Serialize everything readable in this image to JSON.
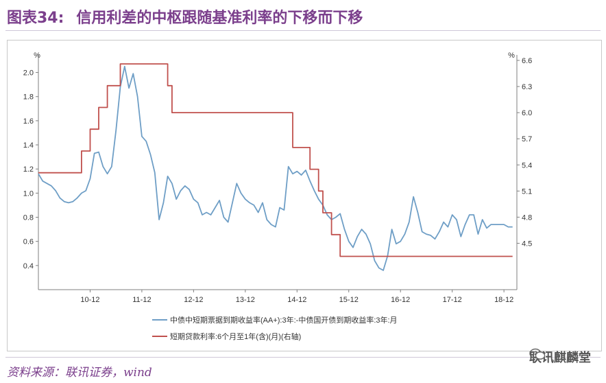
{
  "header": {
    "figure_label": "图表34:",
    "title": "信用利差的中枢跟随基准利率的下移而下移"
  },
  "footer": {
    "source": "资料来源：联讯证券，wind",
    "watermark": "联讯麒麟堂"
  },
  "colors": {
    "accent": "#7b3f8c",
    "series_spread": "#6e9ec6",
    "series_rate": "#c0504d"
  },
  "chart_data": {
    "type": "line",
    "left_axis": {
      "unit": "%",
      "ylim": [
        0.2,
        2.1
      ],
      "ticks": [
        "0.4",
        "0.6",
        "0.8",
        "1.0",
        "1.2",
        "1.4",
        "1.6",
        "1.8",
        "2.0"
      ],
      "tick_values": [
        0.4,
        0.6,
        0.8,
        1.0,
        1.2,
        1.4,
        1.6,
        1.8,
        2.0
      ]
    },
    "right_axis": {
      "unit": "%",
      "ylim": [
        3.9675,
        6.6
      ],
      "ticks": [
        "4.5",
        "4.8",
        "5.1",
        "5.4",
        "5.7",
        "6.0",
        "6.3",
        "6.6"
      ],
      "tick_values": [
        4.5,
        4.8,
        5.1,
        5.4,
        5.7,
        6.0,
        6.3,
        6.6
      ]
    },
    "x_axis": {
      "xlim": [
        "2009-12",
        "2019-03"
      ],
      "ticks": [
        "10-12",
        "11-12",
        "12-12",
        "13-12",
        "14-12",
        "15-12",
        "16-12",
        "17-12",
        "18-12"
      ],
      "tick_dates": [
        "2010-12",
        "2011-12",
        "2012-12",
        "2013-12",
        "2014-12",
        "2015-12",
        "2016-12",
        "2017-12",
        "2018-12"
      ]
    },
    "legend_position": "bottom",
    "grid": false,
    "series": [
      {
        "name": "中债中短期票据到期收益率(AA+):3年:-中债国开债到期收益率:3年:月",
        "axis": "left",
        "points": [
          [
            "2009-12",
            1.16
          ],
          [
            "2010-01",
            1.1
          ],
          [
            "2010-02",
            1.08
          ],
          [
            "2010-03",
            1.06
          ],
          [
            "2010-04",
            1.02
          ],
          [
            "2010-05",
            0.96
          ],
          [
            "2010-06",
            0.93
          ],
          [
            "2010-07",
            0.92
          ],
          [
            "2010-08",
            0.93
          ],
          [
            "2010-09",
            0.96
          ],
          [
            "2010-10",
            1.0
          ],
          [
            "2010-11",
            1.02
          ],
          [
            "2010-12",
            1.12
          ],
          [
            "2011-01",
            1.33
          ],
          [
            "2011-02",
            1.34
          ],
          [
            "2011-03",
            1.22
          ],
          [
            "2011-04",
            1.16
          ],
          [
            "2011-05",
            1.22
          ],
          [
            "2011-06",
            1.52
          ],
          [
            "2011-07",
            1.88
          ],
          [
            "2011-08",
            2.05
          ],
          [
            "2011-09",
            1.87
          ],
          [
            "2011-10",
            1.99
          ],
          [
            "2011-11",
            1.8
          ],
          [
            "2011-12",
            1.47
          ],
          [
            "2012-01",
            1.43
          ],
          [
            "2012-02",
            1.32
          ],
          [
            "2012-03",
            1.17
          ],
          [
            "2012-04",
            0.78
          ],
          [
            "2012-05",
            0.92
          ],
          [
            "2012-06",
            1.14
          ],
          [
            "2012-07",
            1.08
          ],
          [
            "2012-08",
            0.95
          ],
          [
            "2012-09",
            1.02
          ],
          [
            "2012-10",
            1.06
          ],
          [
            "2012-11",
            1.03
          ],
          [
            "2012-12",
            0.95
          ],
          [
            "2013-01",
            0.92
          ],
          [
            "2013-02",
            0.82
          ],
          [
            "2013-03",
            0.84
          ],
          [
            "2013-04",
            0.82
          ],
          [
            "2013-05",
            0.88
          ],
          [
            "2013-06",
            0.94
          ],
          [
            "2013-07",
            0.8
          ],
          [
            "2013-08",
            0.76
          ],
          [
            "2013-09",
            0.92
          ],
          [
            "2013-10",
            1.08
          ],
          [
            "2013-11",
            1.0
          ],
          [
            "2013-12",
            0.95
          ],
          [
            "2014-01",
            0.92
          ],
          [
            "2014-02",
            0.9
          ],
          [
            "2014-03",
            0.84
          ],
          [
            "2014-04",
            0.92
          ],
          [
            "2014-05",
            0.78
          ],
          [
            "2014-06",
            0.74
          ],
          [
            "2014-07",
            0.72
          ],
          [
            "2014-08",
            0.88
          ],
          [
            "2014-09",
            0.86
          ],
          [
            "2014-10",
            1.22
          ],
          [
            "2014-11",
            1.16
          ],
          [
            "2014-12",
            1.18
          ],
          [
            "2015-01",
            1.15
          ],
          [
            "2015-02",
            1.19
          ],
          [
            "2015-03",
            1.1
          ],
          [
            "2015-04",
            1.02
          ],
          [
            "2015-05",
            0.95
          ],
          [
            "2015-06",
            0.9
          ],
          [
            "2015-07",
            0.82
          ],
          [
            "2015-08",
            0.78
          ],
          [
            "2015-09",
            0.8
          ],
          [
            "2015-10",
            0.83
          ],
          [
            "2015-11",
            0.7
          ],
          [
            "2015-12",
            0.6
          ],
          [
            "2016-01",
            0.55
          ],
          [
            "2016-02",
            0.64
          ],
          [
            "2016-03",
            0.7
          ],
          [
            "2016-04",
            0.66
          ],
          [
            "2016-05",
            0.58
          ],
          [
            "2016-06",
            0.44
          ],
          [
            "2016-07",
            0.38
          ],
          [
            "2016-08",
            0.36
          ],
          [
            "2016-09",
            0.48
          ],
          [
            "2016-10",
            0.7
          ],
          [
            "2016-11",
            0.58
          ],
          [
            "2016-12",
            0.6
          ],
          [
            "2017-01",
            0.66
          ],
          [
            "2017-02",
            0.76
          ],
          [
            "2017-03",
            0.97
          ],
          [
            "2017-04",
            0.84
          ],
          [
            "2017-05",
            0.68
          ],
          [
            "2017-06",
            0.66
          ],
          [
            "2017-07",
            0.65
          ],
          [
            "2017-08",
            0.62
          ],
          [
            "2017-09",
            0.68
          ],
          [
            "2017-10",
            0.76
          ],
          [
            "2017-11",
            0.72
          ],
          [
            "2017-12",
            0.82
          ],
          [
            "2018-01",
            0.78
          ],
          [
            "2018-02",
            0.64
          ],
          [
            "2018-03",
            0.74
          ],
          [
            "2018-04",
            0.82
          ],
          [
            "2018-05",
            0.82
          ],
          [
            "2018-06",
            0.66
          ],
          [
            "2018-07",
            0.78
          ],
          [
            "2018-08",
            0.71
          ],
          [
            "2018-09",
            0.74
          ],
          [
            "2018-10",
            0.74
          ],
          [
            "2018-11",
            0.74
          ],
          [
            "2018-12",
            0.74
          ],
          [
            "2019-01",
            0.72
          ],
          [
            "2019-02",
            0.72
          ]
        ]
      },
      {
        "name": "短期贷款利率:6个月至1年(含)(月)(右轴)",
        "axis": "right",
        "points": [
          [
            "2009-12",
            5.31
          ],
          [
            "2010-10",
            5.31
          ],
          [
            "2010-10",
            5.56
          ],
          [
            "2010-12",
            5.56
          ],
          [
            "2010-12",
            5.81
          ],
          [
            "2011-02",
            5.81
          ],
          [
            "2011-02",
            6.06
          ],
          [
            "2011-04",
            6.06
          ],
          [
            "2011-04",
            6.31
          ],
          [
            "2011-07",
            6.31
          ],
          [
            "2011-07",
            6.56
          ],
          [
            "2012-06",
            6.56
          ],
          [
            "2012-06",
            6.31
          ],
          [
            "2012-07",
            6.31
          ],
          [
            "2012-07",
            6.0
          ],
          [
            "2014-11",
            6.0
          ],
          [
            "2014-11",
            5.6
          ],
          [
            "2015-03",
            5.6
          ],
          [
            "2015-03",
            5.35
          ],
          [
            "2015-05",
            5.35
          ],
          [
            "2015-05",
            5.1
          ],
          [
            "2015-06",
            5.1
          ],
          [
            "2015-06",
            4.85
          ],
          [
            "2015-08",
            4.85
          ],
          [
            "2015-08",
            4.6
          ],
          [
            "2015-10",
            4.6
          ],
          [
            "2015-10",
            4.35
          ],
          [
            "2019-02",
            4.35
          ]
        ]
      }
    ]
  }
}
